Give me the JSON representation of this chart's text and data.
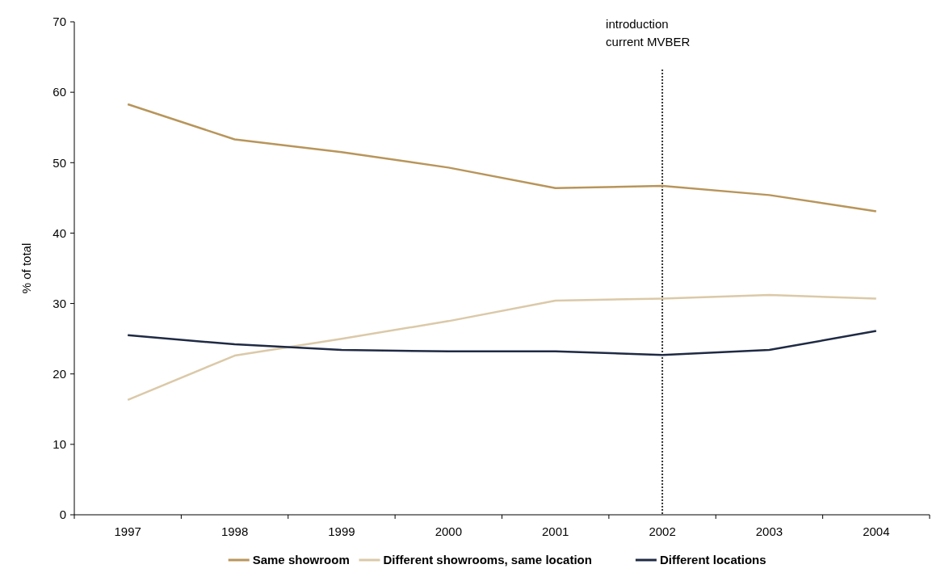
{
  "chart_data": {
    "type": "line",
    "ylabel": "% of total",
    "categories": [
      "1997",
      "1998",
      "1999",
      "2000",
      "2001",
      "2002",
      "2003",
      "2004"
    ],
    "series": [
      {
        "name": "Same showroom",
        "color": "#b8955a",
        "values": [
          58.3,
          53.3,
          51.5,
          49.3,
          46.4,
          46.7,
          45.4,
          43.1
        ]
      },
      {
        "name": "Different showrooms, same location",
        "color": "#dbc9a8",
        "values": [
          16.3,
          22.6,
          25.0,
          27.5,
          30.4,
          30.7,
          31.2,
          30.7
        ]
      },
      {
        "name": "Different locations",
        "color": "#1f2a44",
        "values": [
          25.5,
          24.2,
          23.4,
          23.2,
          23.2,
          22.7,
          23.4,
          26.1
        ]
      }
    ],
    "ylim": [
      0,
      70
    ],
    "yticks": [
      0,
      10,
      20,
      30,
      40,
      50,
      60,
      70
    ],
    "grid": false,
    "legend": "bottom",
    "marker": "none",
    "line_style": "solid",
    "ref_lines": [
      {
        "axis": "x",
        "value": "2002",
        "label": "introduction current MVBER",
        "color": "#333333",
        "line_style": "dotted"
      }
    ]
  }
}
